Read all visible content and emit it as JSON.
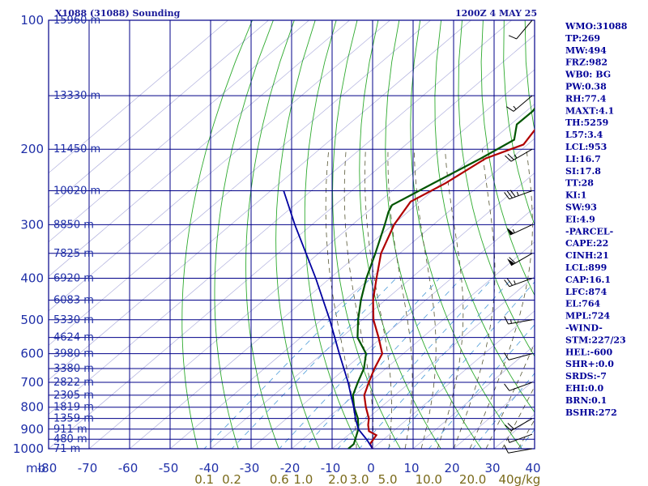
{
  "header": {
    "station": "X1088 (31088) Sounding",
    "time": "1200Z  4 MAY 25"
  },
  "indices": [
    "WMO:31088",
    "TP:269",
    "MW:494",
    "FRZ:982",
    "WB0: BG",
    "PW:0.38",
    "RH:77.4",
    "MAXT:4.1",
    "TH:5259",
    "L57:3.4",
    "LCL:953",
    "LI:16.7",
    "SI:17.8",
    "TT:28",
    "KI:1",
    "SW:93",
    "EI:4.9",
    "-PARCEL-",
    "CAPE:22",
    "CINH:21",
    "LCL:899",
    "CAP:16.1",
    "LFC:874",
    "EL:764",
    "MPL:724",
    "-WIND-",
    "STM:227/23",
    "HEL:-600",
    "SHR+:0.0",
    "SRDS:-7",
    "EHI:0.0",
    "BRN:0.1",
    "BSHR:272"
  ],
  "chart_data": {
    "type": "line",
    "subtype": "skew-T log-P sounding",
    "pressure_axis": {
      "unit": "mb",
      "range": [
        1000,
        100
      ],
      "scale": "log",
      "labels": [
        "100",
        "200",
        "300",
        "400",
        "500",
        "600",
        "700",
        "800",
        "900",
        "1000"
      ]
    },
    "height_labels": [
      {
        "p": 100,
        "label": "15960 m"
      },
      {
        "p": 150,
        "label": "13330 m"
      },
      {
        "p": 200,
        "label": "11450 m"
      },
      {
        "p": 250,
        "label": "10020 m"
      },
      {
        "p": 300,
        "label": "8850 m"
      },
      {
        "p": 350,
        "label": "7825 m"
      },
      {
        "p": 400,
        "label": "6920 m"
      },
      {
        "p": 450,
        "label": "6083 m"
      },
      {
        "p": 500,
        "label": "5330 m"
      },
      {
        "p": 550,
        "label": "4624 m"
      },
      {
        "p": 600,
        "label": "3980 m"
      },
      {
        "p": 650,
        "label": "3380 m"
      },
      {
        "p": 700,
        "label": "2822 m"
      },
      {
        "p": 750,
        "label": "2305 m"
      },
      {
        "p": 800,
        "label": "1819 m"
      },
      {
        "p": 850,
        "label": "1359 m"
      },
      {
        "p": 900,
        "label": "911 m"
      },
      {
        "p": 950,
        "label": "480 m"
      },
      {
        "p": 1000,
        "label": "71 m"
      }
    ],
    "temperature_axis": {
      "unit": "C",
      "unit_label": "mb",
      "range": [
        -80,
        40
      ],
      "ticks": [
        -80,
        -70,
        -60,
        -50,
        -40,
        -30,
        -20,
        -10,
        0,
        10,
        20,
        30,
        40
      ],
      "labels": [
        "-80",
        "-70",
        "-60",
        "-50",
        "-40",
        "-30",
        "-20",
        "-10",
        "0",
        "10",
        "20",
        "30",
        "40"
      ]
    },
    "mixing_ratio_labels": [
      {
        "w": 0.1,
        "label": "0.1"
      },
      {
        "w": 0.2,
        "label": "0.2"
      },
      {
        "w": 0.6,
        "label": "0.6"
      },
      {
        "w": 1.0,
        "label": "1.0"
      },
      {
        "w": 2.0,
        "label": "2.0"
      },
      {
        "w": 3.0,
        "label": "3.0"
      },
      {
        "w": 5.0,
        "label": "5.0"
      },
      {
        "w": 10.0,
        "label": "10.0"
      },
      {
        "w": 20.0,
        "label": "20.0"
      },
      {
        "w": 40.0,
        "label": "40g/kg"
      }
    ],
    "series": [
      {
        "kind": "temperature",
        "color": "#b00000",
        "points": [
          {
            "p": 1000,
            "t": 0.0
          },
          {
            "p": 975,
            "t": -2.0
          },
          {
            "p": 930,
            "t": -3.0
          },
          {
            "p": 910,
            "t": -6.0
          },
          {
            "p": 880,
            "t": -8.0
          },
          {
            "p": 850,
            "t": -9.7
          },
          {
            "p": 800,
            "t": -13.7
          },
          {
            "p": 750,
            "t": -17.6
          },
          {
            "p": 700,
            "t": -20.2
          },
          {
            "p": 650,
            "t": -22.8
          },
          {
            "p": 600,
            "t": -25.2
          },
          {
            "p": 550,
            "t": -30.8
          },
          {
            "p": 500,
            "t": -37.2
          },
          {
            "p": 450,
            "t": -43.0
          },
          {
            "p": 400,
            "t": -48.5
          },
          {
            "p": 350,
            "t": -54.6
          },
          {
            "p": 300,
            "t": -59.7
          },
          {
            "p": 265,
            "t": -62.3
          },
          {
            "p": 240,
            "t": -59.0
          },
          {
            "p": 210,
            "t": -56.3
          },
          {
            "p": 195,
            "t": -51.0
          },
          {
            "p": 175,
            "t": -53.0
          },
          {
            "p": 165,
            "t": -49.8
          },
          {
            "p": 155,
            "t": -51.5
          },
          {
            "p": 150,
            "t": -50.5
          },
          {
            "p": 138,
            "t": -49.5
          },
          {
            "p": 125,
            "t": -45.9
          },
          {
            "p": 100,
            "t": -37.0
          }
        ]
      },
      {
        "kind": "dewpoint",
        "color": "#005500",
        "points": [
          {
            "p": 1000,
            "t": -6.0
          },
          {
            "p": 975,
            "t": -6.0
          },
          {
            "p": 900,
            "t": -9.2
          },
          {
            "p": 850,
            "t": -12.4
          },
          {
            "p": 800,
            "t": -16.6
          },
          {
            "p": 750,
            "t": -20.4
          },
          {
            "p": 700,
            "t": -22.9
          },
          {
            "p": 650,
            "t": -25.4
          },
          {
            "p": 600,
            "t": -29.2
          },
          {
            "p": 550,
            "t": -36.0
          },
          {
            "p": 500,
            "t": -41.0
          },
          {
            "p": 450,
            "t": -46.0
          },
          {
            "p": 400,
            "t": -51.0
          },
          {
            "p": 350,
            "t": -56.0
          },
          {
            "p": 300,
            "t": -62.0
          },
          {
            "p": 280,
            "t": -64.8
          },
          {
            "p": 270,
            "t": -65.9
          },
          {
            "p": 240,
            "t": -62.0
          },
          {
            "p": 210,
            "t": -57.5
          },
          {
            "p": 190,
            "t": -54.7
          },
          {
            "p": 175,
            "t": -58.5
          },
          {
            "p": 163,
            "t": -58.4
          },
          {
            "p": 150,
            "t": -60.0
          },
          {
            "p": 140,
            "t": -58.2
          },
          {
            "p": 125,
            "t": -60.6
          },
          {
            "p": 100,
            "t": -60.8
          }
        ]
      },
      {
        "kind": "parcel",
        "color": "#0000a0",
        "points": [
          {
            "p": 1000,
            "t": 0.0
          },
          {
            "p": 953,
            "t": -4.0
          },
          {
            "p": 900,
            "t": -9.2
          },
          {
            "p": 850,
            "t": -13.0
          },
          {
            "p": 800,
            "t": -16.7
          },
          {
            "p": 750,
            "t": -20.9
          },
          {
            "p": 700,
            "t": -25.3
          },
          {
            "p": 600,
            "t": -35.8
          },
          {
            "p": 500,
            "t": -48.0
          },
          {
            "p": 400,
            "t": -63.5
          },
          {
            "p": 300,
            "t": -84.2
          },
          {
            "p": 250,
            "t": -96.8
          }
        ]
      }
    ],
    "wind_barbs": [
      {
        "p": 1000,
        "dir": 260,
        "spd": 10
      },
      {
        "p": 925,
        "dir": 250,
        "spd": 5
      },
      {
        "p": 850,
        "dir": 240,
        "spd": 20
      },
      {
        "p": 700,
        "dir": 250,
        "spd": 10
      },
      {
        "p": 600,
        "dir": 255,
        "spd": 10
      },
      {
        "p": 500,
        "dir": 260,
        "spd": 15
      },
      {
        "p": 400,
        "dir": 250,
        "spd": 25
      },
      {
        "p": 350,
        "dir": 240,
        "spd": 60
      },
      {
        "p": 300,
        "dir": 245,
        "spd": 55
      },
      {
        "p": 250,
        "dir": 250,
        "spd": 35
      },
      {
        "p": 200,
        "dir": 240,
        "spd": 25
      },
      {
        "p": 150,
        "dir": 230,
        "spd": 15
      },
      {
        "p": 100,
        "dir": 220,
        "spd": 10
      }
    ]
  }
}
